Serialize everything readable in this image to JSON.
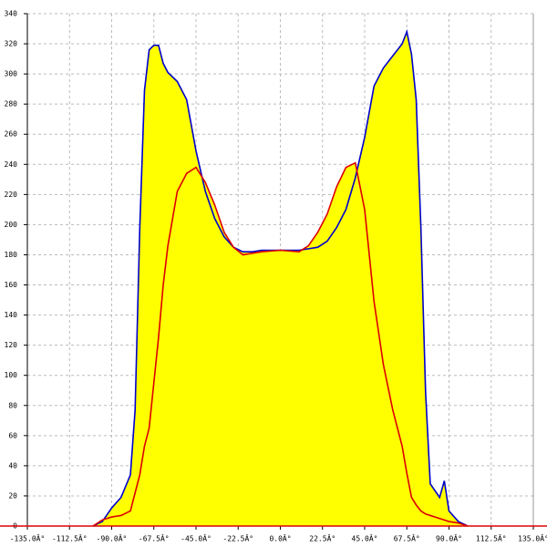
{
  "chart_data": {
    "type": "area",
    "x": [
      -100,
      -95,
      -90,
      -85,
      -80,
      -77.5,
      -75,
      -72.5,
      -70,
      -67.5,
      -65,
      -62.5,
      -60,
      -55,
      -50,
      -45,
      -40,
      -35,
      -30,
      -25,
      -20,
      -15,
      -10,
      0,
      10,
      15,
      20,
      25,
      30,
      35,
      40,
      45,
      50,
      55,
      60,
      65,
      67.5,
      70,
      72.5,
      75,
      77.5,
      80,
      85,
      87.5,
      90,
      95,
      100
    ],
    "series": [
      {
        "color": "#0000cc",
        "fill": "#ffff00",
        "values": [
          0,
          3,
          12,
          19,
          34,
          77,
          198,
          289,
          316,
          319,
          319,
          307,
          301,
          295,
          283,
          249,
          222,
          204,
          192,
          185,
          182,
          182,
          183,
          183,
          183,
          184,
          185,
          189,
          198,
          210,
          231,
          258,
          292,
          304,
          312,
          320,
          328,
          313,
          283,
          198,
          89,
          28,
          19,
          30,
          10,
          3,
          0
        ]
      },
      {
        "color": "#dd0000",
        "fill": "#ffff00",
        "values": [
          0,
          4,
          6,
          7,
          10,
          22,
          34,
          53,
          65,
          95,
          125,
          160,
          186,
          222,
          234,
          238,
          228,
          213,
          195,
          185,
          180,
          181,
          182,
          183,
          182,
          186,
          195,
          207,
          225,
          238,
          241,
          210,
          149,
          107,
          77,
          53,
          35,
          19,
          14,
          10,
          8,
          7,
          5,
          4,
          3,
          2,
          0
        ]
      }
    ],
    "xlim": [
      -135,
      135
    ],
    "xticks": [
      {
        "value": -135,
        "label": "-135.0Â°"
      },
      {
        "value": -112.5,
        "label": "-112.5Â°"
      },
      {
        "value": -90,
        "label": "-90.0Â°"
      },
      {
        "value": -67.5,
        "label": "-67.5Â°"
      },
      {
        "value": -45,
        "label": "-45.0Â°"
      },
      {
        "value": -22.5,
        "label": "-22.5Â°"
      },
      {
        "value": 0,
        "label": "0.0Â°"
      },
      {
        "value": 22.5,
        "label": "22.5Â°"
      },
      {
        "value": 45,
        "label": "45.0Â°"
      },
      {
        "value": 67.5,
        "label": "67.5Â°"
      },
      {
        "value": 90,
        "label": "90.0Â°"
      },
      {
        "value": 112.5,
        "label": "112.5Â°"
      },
      {
        "value": 135,
        "label": "135.0Â°"
      }
    ],
    "ylim": [
      0,
      340
    ],
    "yticks": [
      0,
      20,
      40,
      60,
      80,
      100,
      120,
      140,
      160,
      180,
      200,
      220,
      240,
      260,
      280,
      300,
      320,
      340
    ],
    "grid": true
  }
}
